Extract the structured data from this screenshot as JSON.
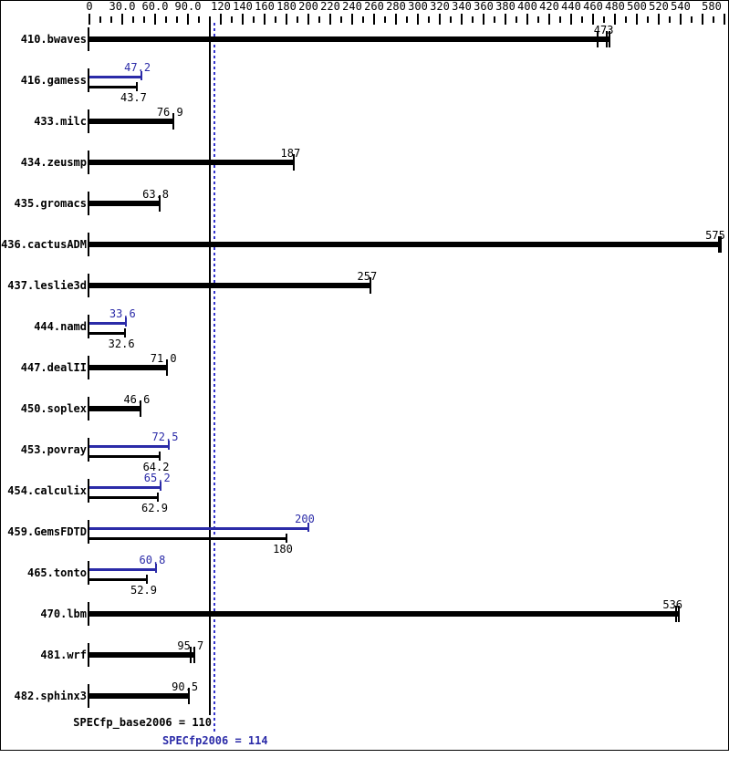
{
  "chart_data": {
    "type": "bar",
    "orientation": "horizontal",
    "title": "",
    "colors": {
      "base": "#000000",
      "peak": "#2b2ba8",
      "peak_line": "#3333cc",
      "background": "#ffffff"
    },
    "axis": {
      "min": 0,
      "max": 580,
      "minor_step": 10,
      "major_tick_values": [
        0,
        30,
        60,
        90,
        120,
        140,
        160,
        180,
        200,
        220,
        240,
        260,
        280,
        300,
        320,
        340,
        360,
        380,
        400,
        420,
        440,
        460,
        480,
        500,
        520,
        540,
        560,
        580
      ],
      "labels": [
        [
          "0",
          0,
          0
        ],
        [
          "30.0",
          30,
          0
        ],
        [
          "60.0",
          60,
          0
        ],
        [
          "90.0",
          90,
          0
        ],
        [
          "120",
          120,
          0
        ],
        [
          "140",
          140,
          0
        ],
        [
          "160",
          160,
          0
        ],
        [
          "180",
          180,
          0
        ],
        [
          "200",
          200,
          0
        ],
        [
          "220",
          220,
          0
        ],
        [
          "240",
          240,
          0
        ],
        [
          "260",
          260,
          0
        ],
        [
          "280",
          280,
          0
        ],
        [
          "300",
          300,
          0
        ],
        [
          "320",
          320,
          0
        ],
        [
          "340",
          340,
          0
        ],
        [
          "360",
          360,
          0
        ],
        [
          "380",
          380,
          0
        ],
        [
          "400",
          400,
          0
        ],
        [
          "420",
          420,
          0
        ],
        [
          "440",
          440,
          0
        ],
        [
          "460",
          460,
          0
        ],
        [
          "480",
          480,
          0
        ],
        [
          "500",
          500,
          0
        ],
        [
          "520",
          520,
          0
        ],
        [
          "540",
          540,
          0
        ],
        [
          "580",
          580,
          -14
        ]
      ]
    },
    "benchmarks": [
      {
        "name": "410.bwaves",
        "base": {
          "value": 473,
          "label": "473",
          "ticks": [
            464,
            472.5,
            475
          ]
        },
        "peak": null
      },
      {
        "name": "416.gamess",
        "base": {
          "value": 43.7,
          "label": "43.7",
          "ticks": [
            43.7
          ]
        },
        "peak": {
          "value": 47.2,
          "label": "47.2",
          "ticks": [
            47.2
          ]
        }
      },
      {
        "name": "433.milc",
        "base": {
          "value": 76.9,
          "label": "76.9",
          "ticks": [
            76.9
          ]
        },
        "peak": null
      },
      {
        "name": "434.zeusmp",
        "base": {
          "value": 187,
          "label": "187",
          "ticks": [
            187
          ]
        },
        "peak": null
      },
      {
        "name": "435.gromacs",
        "base": {
          "value": 63.8,
          "label": "63.8",
          "ticks": [
            63.8
          ]
        },
        "peak": null
      },
      {
        "name": "436.cactusADM",
        "base": {
          "value": 575,
          "label": "575",
          "ticks": [
            575,
            577
          ]
        },
        "peak": null
      },
      {
        "name": "437.leslie3d",
        "base": {
          "value": 257,
          "label": "257",
          "ticks": [
            257
          ]
        },
        "peak": null
      },
      {
        "name": "444.namd",
        "base": {
          "value": 32.6,
          "label": "32.6",
          "ticks": [
            32.6
          ]
        },
        "peak": {
          "value": 33.6,
          "label": "33.6",
          "ticks": [
            33.6
          ]
        }
      },
      {
        "name": "447.dealII",
        "base": {
          "value": 71.0,
          "label": "71.0",
          "ticks": [
            71.0
          ]
        },
        "peak": null
      },
      {
        "name": "450.soplex",
        "base": {
          "value": 46.6,
          "label": "46.6",
          "ticks": [
            46.6
          ]
        },
        "peak": null
      },
      {
        "name": "453.povray",
        "base": {
          "value": 64.2,
          "label": "64.2",
          "ticks": [
            64.2
          ]
        },
        "peak": {
          "value": 72.5,
          "label": "72.5",
          "ticks": [
            72.5
          ]
        }
      },
      {
        "name": "454.calculix",
        "base": {
          "value": 62.9,
          "label": "62.9",
          "ticks": [
            62.9
          ]
        },
        "peak": {
          "value": 65.2,
          "label": "65.2",
          "ticks": [
            65.2
          ]
        }
      },
      {
        "name": "459.GemsFDTD",
        "base": {
          "value": 180,
          "label": "180",
          "ticks": [
            180
          ]
        },
        "peak": {
          "value": 200,
          "label": "200",
          "ticks": [
            200
          ]
        }
      },
      {
        "name": "465.tonto",
        "base": {
          "value": 52.9,
          "label": "52.9",
          "ticks": [
            52.9
          ]
        },
        "peak": {
          "value": 60.8,
          "label": "60.8",
          "ticks": [
            60.8
          ]
        }
      },
      {
        "name": "470.lbm",
        "base": {
          "value": 536,
          "label": "536",
          "ticks": [
            536,
            538.5
          ]
        },
        "peak": null
      },
      {
        "name": "481.wrf",
        "base": {
          "value": 95.7,
          "label": "95.7",
          "ticks": [
            92.5,
            95.7
          ]
        },
        "peak": null
      },
      {
        "name": "482.sphinx3",
        "base": {
          "value": 90.5,
          "label": "90.5",
          "ticks": [
            90.5
          ]
        },
        "peak": null
      }
    ],
    "summary": {
      "base_label": "SPECfp_base2006 = 110",
      "base_value": 110,
      "peak_label": "SPECfp2006 = 114",
      "peak_value": 114
    }
  }
}
